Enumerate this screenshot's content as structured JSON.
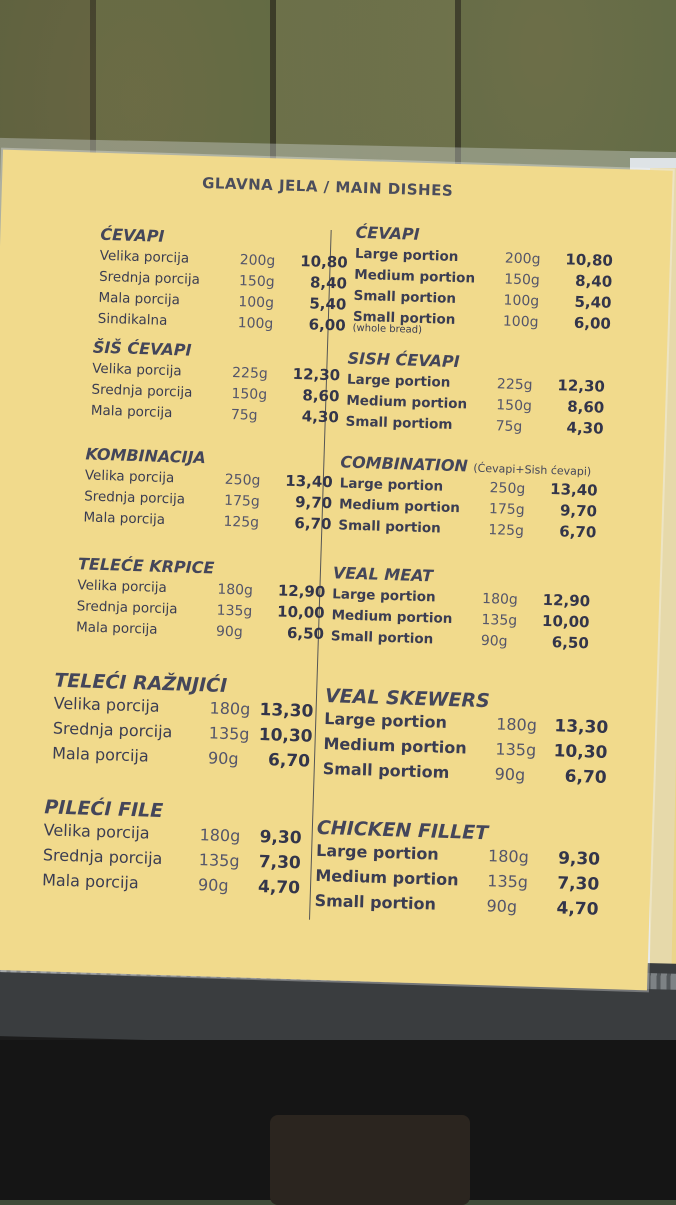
{
  "title": "GLAVNA JELA / MAIN DISHES",
  "left": [
    {
      "title": "ĆEVAPI",
      "items": [
        {
          "name": "Velika porcija",
          "weight": "200g",
          "price": "10,80"
        },
        {
          "name": "Srednja porcija",
          "weight": "150g",
          "price": "8,40"
        },
        {
          "name": "Mala porcija",
          "weight": "100g",
          "price": "5,40"
        },
        {
          "name": "Sindikalna",
          "weight": "100g",
          "price": "6,00"
        }
      ]
    },
    {
      "title": "ŠIŠ ĆEVAPI",
      "items": [
        {
          "name": "Velika porcija",
          "weight": "225g",
          "price": "12,30"
        },
        {
          "name": "Srednja porcija",
          "weight": "150g",
          "price": "8,60"
        },
        {
          "name": "Mala porcija",
          "weight": "75g",
          "price": "4,30"
        }
      ]
    },
    {
      "title": "KOMBINACIJA",
      "items": [
        {
          "name": "Velika porcija",
          "weight": "250g",
          "price": "13,40"
        },
        {
          "name": "Srednja porcija",
          "weight": "175g",
          "price": "9,70"
        },
        {
          "name": "Mala porcija",
          "weight": "125g",
          "price": "6,70"
        }
      ]
    },
    {
      "title": "TELEĆE KRPICE",
      "items": [
        {
          "name": "Velika porcija",
          "weight": "180g",
          "price": "12,90"
        },
        {
          "name": "Srednja porcija",
          "weight": "135g",
          "price": "10,00"
        },
        {
          "name": "Mala porcija",
          "weight": "90g",
          "price": "6,50"
        }
      ]
    },
    {
      "title": "TELEĆI RAŽNJIĆI",
      "items": [
        {
          "name": "Velika porcija",
          "weight": "180g",
          "price": "13,30"
        },
        {
          "name": "Srednja porcija",
          "weight": "135g",
          "price": "10,30"
        },
        {
          "name": "Mala porcija",
          "weight": "90g",
          "price": "6,70"
        }
      ]
    },
    {
      "title": "PILEĆI FILE",
      "items": [
        {
          "name": "Velika porcija",
          "weight": "180g",
          "price": "9,30"
        },
        {
          "name": "Srednja porcija",
          "weight": "135g",
          "price": "7,30"
        },
        {
          "name": "Mala porcija",
          "weight": "90g",
          "price": "4,70"
        }
      ]
    }
  ],
  "right": [
    {
      "title": "ĆEVAPI",
      "note": "",
      "items": [
        {
          "name": "Large portion",
          "weight": "200g",
          "price": "10,80",
          "sub": ""
        },
        {
          "name": "Medium portion",
          "weight": "150g",
          "price": "8,40",
          "sub": ""
        },
        {
          "name": "Small portion",
          "weight": "100g",
          "price": "5,40",
          "sub": ""
        },
        {
          "name": "Small portion",
          "weight": "100g",
          "price": "6,00",
          "sub": "(whole bread)"
        }
      ]
    },
    {
      "title": "SISH ĆEVAPI",
      "note": "",
      "items": [
        {
          "name": "Large portion",
          "weight": "225g",
          "price": "12,30",
          "sub": ""
        },
        {
          "name": "Medium portion",
          "weight": "150g",
          "price": "8,60",
          "sub": ""
        },
        {
          "name": "Small portiom",
          "weight": "75g",
          "price": "4,30",
          "sub": ""
        }
      ]
    },
    {
      "title": "COMBINATION",
      "note": "(Ćevapi+Sish ćevapi)",
      "items": [
        {
          "name": "Large portion",
          "weight": "250g",
          "price": "13,40",
          "sub": ""
        },
        {
          "name": "Medium portion",
          "weight": "175g",
          "price": "9,70",
          "sub": ""
        },
        {
          "name": "Small portion",
          "weight": "125g",
          "price": "6,70",
          "sub": ""
        }
      ]
    },
    {
      "title": "VEAL MEAT",
      "note": "",
      "items": [
        {
          "name": "Large portion",
          "weight": "180g",
          "price": "12,90",
          "sub": ""
        },
        {
          "name": "Medium portion",
          "weight": "135g",
          "price": "10,00",
          "sub": ""
        },
        {
          "name": "Small portion",
          "weight": "90g",
          "price": "6,50",
          "sub": ""
        }
      ]
    },
    {
      "title": "VEAL SKEWERS",
      "note": "",
      "items": [
        {
          "name": "Large portion",
          "weight": "180g",
          "price": "13,30",
          "sub": ""
        },
        {
          "name": "Medium portion",
          "weight": "135g",
          "price": "10,30",
          "sub": ""
        },
        {
          "name": "Small portiom",
          "weight": "90g",
          "price": "6,70",
          "sub": ""
        }
      ]
    },
    {
      "title": "CHICKEN FILLET",
      "note": "",
      "items": [
        {
          "name": "Large portion",
          "weight": "180g",
          "price": "9,30",
          "sub": ""
        },
        {
          "name": "Medium portion",
          "weight": "135g",
          "price": "7,30",
          "sub": ""
        },
        {
          "name": "Small portion",
          "weight": "90g",
          "price": "4,70",
          "sub": ""
        }
      ]
    }
  ]
}
